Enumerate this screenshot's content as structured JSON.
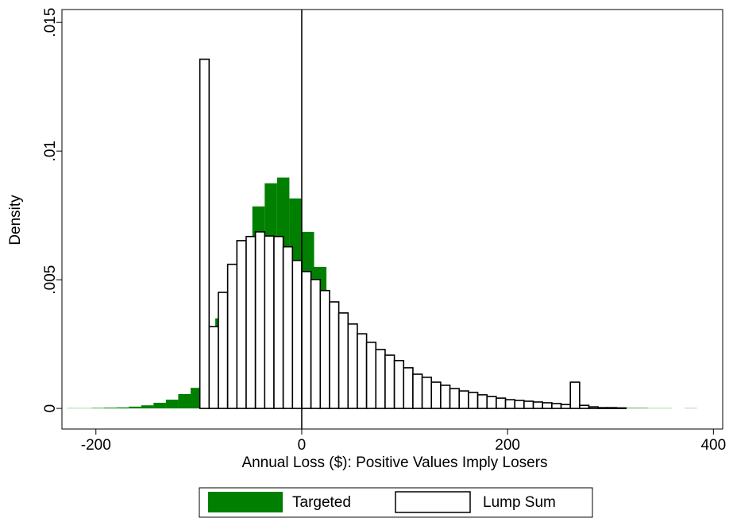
{
  "chart_data": {
    "type": "histogram",
    "xlabel": "Annual Loss ($): Positive Values Imply Losers",
    "ylabel": "Density",
    "xlim": [
      -233,
      409
    ],
    "ylim": [
      -0.0008,
      0.0155
    ],
    "xticks": [
      -200,
      0,
      200,
      400
    ],
    "yticks": [
      {
        "value": 0,
        "label": "0"
      },
      {
        "value": 0.005,
        "label": ".005"
      },
      {
        "value": 0.01,
        "label": ".01"
      },
      {
        "value": 0.015,
        "label": ".015"
      }
    ],
    "reference_line_x": 0,
    "series": [
      {
        "name": "Targeted",
        "color": "#007f00",
        "bins": [
          -228,
          -216,
          -204,
          -192,
          -180,
          -168,
          -156,
          -144,
          -132,
          -120,
          -108,
          -96,
          -84,
          -72,
          -60,
          -48,
          -36,
          -24,
          -12,
          0,
          12,
          24,
          36,
          48,
          60,
          72,
          84,
          96,
          108,
          120,
          132,
          144,
          156,
          168,
          180,
          192,
          204,
          216,
          228,
          240,
          252,
          264,
          276,
          288,
          300,
          312,
          324,
          336,
          348,
          360,
          372,
          384
        ],
        "values": [
          1e-05,
          1e-05,
          2e-05,
          3e-05,
          4e-05,
          7e-05,
          0.00012,
          0.00022,
          0.00034,
          0.00056,
          0.0008,
          0.0022,
          0.0035,
          0.00485,
          0.00652,
          0.00785,
          0.00875,
          0.00897,
          0.00816,
          0.00686,
          0.0055,
          0.00414,
          0.00312,
          0.00229,
          0.00179,
          0.00142,
          0.00111,
          0.0009,
          0.00074,
          0.00062,
          0.00053,
          0.00043,
          0.00037,
          0.00031,
          0.00028,
          0.00025,
          0.00022,
          0.00019,
          0.00015,
          0.00012,
          0.0001,
          8e-05,
          6e-05,
          4e-05,
          3e-05,
          2e-05,
          2e-05,
          1e-05,
          1e-05,
          0,
          1e-05
        ]
      },
      {
        "name": "Lump Sum",
        "color": "#ffffff",
        "edgecolor": "#000000",
        "bins": [
          -99,
          -90,
          -81,
          -72,
          -63,
          -54,
          -45,
          -36,
          -27,
          -18,
          -9,
          0,
          9,
          18,
          27,
          36,
          45,
          54,
          63,
          72,
          81,
          90,
          99,
          108,
          117,
          126,
          135,
          144,
          153,
          162,
          171,
          180,
          189,
          198,
          207,
          216,
          225,
          234,
          243,
          252,
          261,
          270,
          279,
          288,
          297,
          306,
          315
        ],
        "values": [
          0.01357,
          0.00318,
          0.00451,
          0.0056,
          0.00652,
          0.00668,
          0.00686,
          0.0067,
          0.00668,
          0.00628,
          0.00575,
          0.00532,
          0.00501,
          0.00458,
          0.00414,
          0.00371,
          0.00328,
          0.0029,
          0.00257,
          0.00229,
          0.00207,
          0.00186,
          0.00158,
          0.00133,
          0.00121,
          0.00102,
          0.0009,
          0.00077,
          0.00068,
          0.00062,
          0.00053,
          0.00046,
          0.0004,
          0.00034,
          0.00031,
          0.00028,
          0.00025,
          0.00022,
          0.00019,
          0.00015,
          0.00102,
          0.00012,
          6e-05,
          3e-05,
          3e-05,
          2e-05
        ]
      }
    ]
  }
}
